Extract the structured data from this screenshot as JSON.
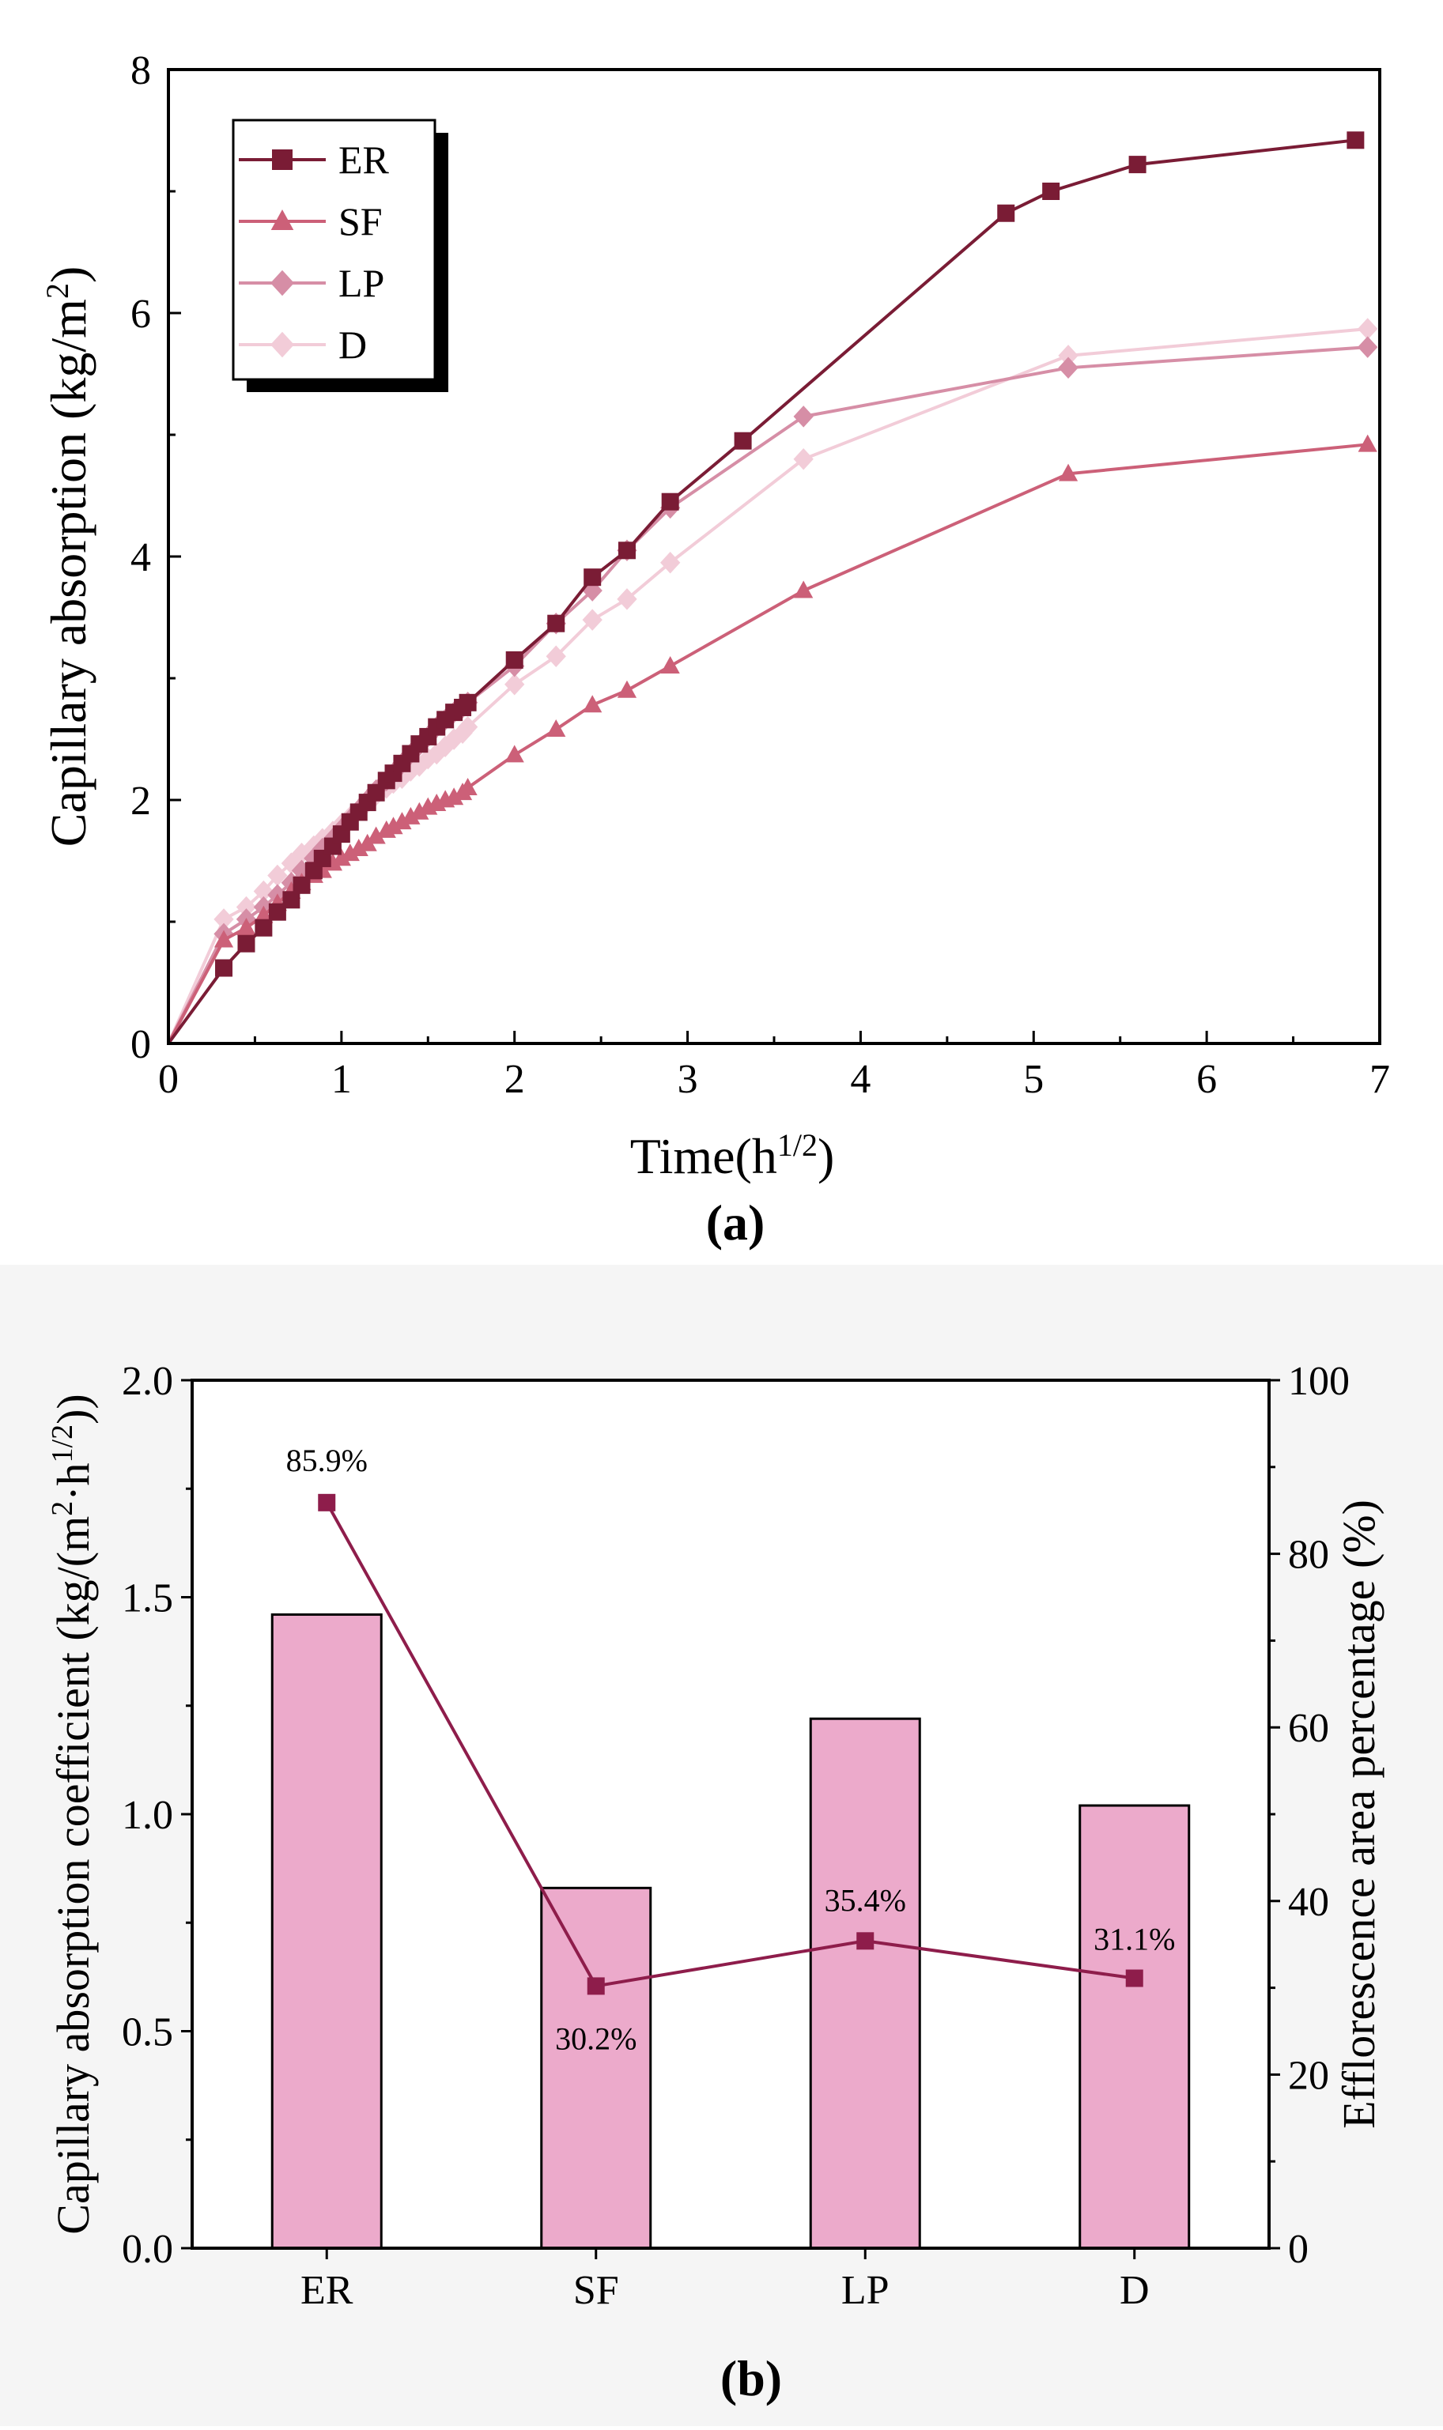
{
  "chart_data": [
    {
      "type": "line",
      "panel_label": "(a)",
      "xlabel": "Time(h",
      "xlabel_sup": "1/2",
      "xlabel_end": ")",
      "ylabel": "Capillary absorption (kg/m",
      "ylabel_sup": "2",
      "ylabel_end": ")",
      "xlim": [
        0,
        7
      ],
      "ylim": [
        0,
        8
      ],
      "xticks": [
        0,
        1,
        2,
        3,
        4,
        5,
        6,
        7
      ],
      "yticks": [
        0,
        2,
        4,
        6,
        8
      ],
      "legend": [
        "ER",
        "SF",
        "LP",
        "D"
      ],
      "legend_position": "top-left",
      "series": [
        {
          "name": "ER",
          "color": "#7a1c35",
          "marker": "square",
          "x": [
            0,
            0.32,
            0.45,
            0.55,
            0.63,
            0.71,
            0.77,
            0.84,
            0.89,
            0.95,
            1.0,
            1.05,
            1.1,
            1.15,
            1.2,
            1.26,
            1.3,
            1.35,
            1.4,
            1.45,
            1.5,
            1.55,
            1.6,
            1.65,
            1.7,
            1.73,
            2.0,
            2.24,
            2.45,
            2.65,
            2.9,
            3.32,
            4.84,
            5.1,
            5.6,
            6.86
          ],
          "y": [
            0,
            0.62,
            0.82,
            0.95,
            1.08,
            1.18,
            1.3,
            1.42,
            1.52,
            1.62,
            1.72,
            1.82,
            1.9,
            1.98,
            2.06,
            2.16,
            2.22,
            2.3,
            2.38,
            2.46,
            2.52,
            2.6,
            2.66,
            2.72,
            2.76,
            2.8,
            3.15,
            3.45,
            3.83,
            4.05,
            4.45,
            4.95,
            6.82,
            7.0,
            7.22,
            7.42
          ]
        },
        {
          "name": "SF",
          "color": "#cc6078",
          "marker": "triangle",
          "x": [
            0,
            0.32,
            0.45,
            0.55,
            0.63,
            0.71,
            0.77,
            0.84,
            0.89,
            0.95,
            1.0,
            1.05,
            1.1,
            1.15,
            1.2,
            1.26,
            1.3,
            1.35,
            1.4,
            1.45,
            1.5,
            1.55,
            1.6,
            1.65,
            1.7,
            1.73,
            2.0,
            2.24,
            2.45,
            2.65,
            2.9,
            3.67,
            5.2,
            6.93
          ],
          "y": [
            0,
            0.85,
            0.95,
            1.05,
            1.15,
            1.25,
            1.32,
            1.38,
            1.42,
            1.48,
            1.52,
            1.56,
            1.6,
            1.64,
            1.7,
            1.75,
            1.78,
            1.82,
            1.86,
            1.9,
            1.94,
            1.97,
            2.0,
            2.02,
            2.06,
            2.1,
            2.37,
            2.58,
            2.78,
            2.9,
            3.1,
            3.72,
            4.68,
            4.92
          ]
        },
        {
          "name": "LP",
          "color": "#d68ea6",
          "marker": "diamond",
          "x": [
            0,
            0.32,
            0.45,
            0.55,
            0.63,
            0.71,
            0.77,
            0.84,
            0.89,
            0.95,
            1.0,
            1.05,
            1.1,
            1.15,
            1.2,
            1.26,
            1.3,
            1.35,
            1.4,
            1.45,
            1.5,
            1.55,
            1.6,
            1.65,
            1.7,
            1.73,
            2.0,
            2.24,
            2.45,
            2.65,
            2.9,
            3.67,
            5.2,
            6.93
          ],
          "y": [
            0,
            0.9,
            1.02,
            1.12,
            1.22,
            1.32,
            1.42,
            1.52,
            1.6,
            1.68,
            1.76,
            1.84,
            1.92,
            2.0,
            2.08,
            2.16,
            2.22,
            2.3,
            2.38,
            2.45,
            2.52,
            2.6,
            2.66,
            2.72,
            2.76,
            2.8,
            3.1,
            3.45,
            3.72,
            4.05,
            4.4,
            5.15,
            5.55,
            5.72
          ]
        },
        {
          "name": "D",
          "color": "#f2ccd8",
          "marker": "diamond",
          "x": [
            0,
            0.32,
            0.45,
            0.55,
            0.63,
            0.71,
            0.77,
            0.84,
            0.89,
            0.95,
            1.0,
            1.05,
            1.1,
            1.15,
            1.2,
            1.26,
            1.3,
            1.35,
            1.4,
            1.45,
            1.5,
            1.55,
            1.6,
            1.65,
            1.7,
            1.73,
            2.0,
            2.24,
            2.45,
            2.65,
            2.9,
            3.67,
            5.2,
            6.93
          ],
          "y": [
            0,
            1.02,
            1.12,
            1.25,
            1.38,
            1.48,
            1.56,
            1.62,
            1.68,
            1.74,
            1.8,
            1.86,
            1.92,
            1.98,
            2.04,
            2.1,
            2.14,
            2.18,
            2.24,
            2.28,
            2.34,
            2.38,
            2.44,
            2.5,
            2.55,
            2.6,
            2.95,
            3.18,
            3.48,
            3.65,
            3.95,
            4.8,
            5.65,
            5.87
          ]
        }
      ]
    },
    {
      "type": "bar",
      "panel_label": "(b)",
      "categories": [
        "ER",
        "SF",
        "LP",
        "D"
      ],
      "ylabel": "Capillary absorption coefficient (kg/(m",
      "ylabel_sup1": "2",
      "ylabel_mid": "·h",
      "ylabel_sup2": "1/2",
      "ylabel_end": "))",
      "y2label": "Efflorescence area percentage (%)",
      "ylim": [
        0,
        2.0
      ],
      "yticks": [
        "0.0",
        "0.5",
        "1.0",
        "1.5",
        "2.0"
      ],
      "y2lim": [
        0,
        100
      ],
      "y2ticks": [
        "0",
        "20",
        "40",
        "60",
        "80",
        "100"
      ],
      "bar_color": "#ecaacb",
      "line_color": "#8e1d4b",
      "series": [
        {
          "name": "Capillary absorption coefficient",
          "values": [
            1.46,
            0.83,
            1.22,
            1.02
          ]
        },
        {
          "name": "Efflorescence area percentage",
          "values": [
            85.9,
            30.2,
            35.4,
            31.1
          ],
          "labels": [
            "85.9%",
            "30.2%",
            "35.4%",
            "31.1%"
          ]
        }
      ]
    }
  ]
}
